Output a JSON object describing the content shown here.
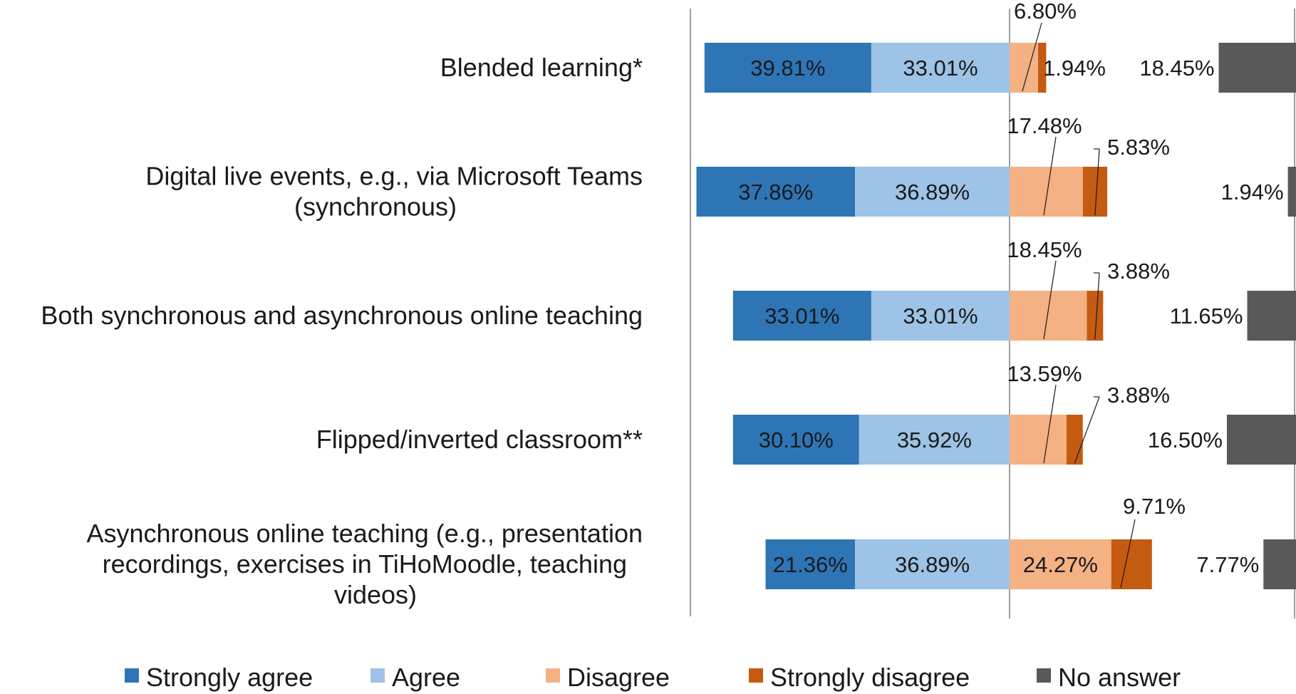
{
  "chart_data": {
    "type": "bar",
    "orientation": "horizontal",
    "stacked": "diverging",
    "categories": [
      "Blended learning*",
      "Digital live events, e.g., via Microsoft Teams (synchronous)",
      "Both synchronous and asynchronous online teaching",
      "Flipped/inverted classroom**",
      "Asynchronous online teaching (e.g., presentation recordings, exercises in TiHoMoodle, teaching videos)"
    ],
    "category_lines": [
      [
        "Blended learning*"
      ],
      [
        "Digital live events, e.g., via Microsoft Teams",
        "(synchronous)"
      ],
      [
        "Both synchronous and asynchronous online teaching"
      ],
      [
        "Flipped/inverted classroom**"
      ],
      [
        "Asynchronous online teaching (e.g., presentation",
        "recordings, exercises in TiHoMoodle, teaching",
        "videos)"
      ]
    ],
    "series": [
      {
        "name": "Strongly agree",
        "color": "#2e75b6",
        "values": [
          39.81,
          37.86,
          33.01,
          30.1,
          21.36
        ],
        "labels": [
          "39.81%",
          "37.86%",
          "33.01%",
          "30.10%",
          "21.36%"
        ]
      },
      {
        "name": "Agree",
        "color": "#9dc3e6",
        "values": [
          33.01,
          36.89,
          33.01,
          35.92,
          36.89
        ],
        "labels": [
          "33.01%",
          "36.89%",
          "33.01%",
          "35.92%",
          "36.89%"
        ]
      },
      {
        "name": "Disagree",
        "color": "#f4b183",
        "values": [
          6.8,
          17.48,
          18.45,
          13.59,
          24.27
        ],
        "labels": [
          "6.80%",
          "17.48%",
          "18.45%",
          "13.59%",
          "24.27%"
        ]
      },
      {
        "name": "Strongly disagree",
        "color": "#c55a11",
        "values": [
          1.94,
          5.83,
          3.88,
          3.88,
          9.71
        ],
        "labels": [
          "1.94%",
          "5.83%",
          "3.88%",
          "3.88%",
          "9.71%"
        ]
      },
      {
        "name": "No answer",
        "color": "#595959",
        "values": [
          18.45,
          1.94,
          11.65,
          16.5,
          7.77
        ],
        "labels": [
          "18.45%",
          "1.94%",
          "11.65%",
          "16.50%",
          "7.77%"
        ]
      }
    ],
    "legend_position": "bottom",
    "grid": false
  }
}
